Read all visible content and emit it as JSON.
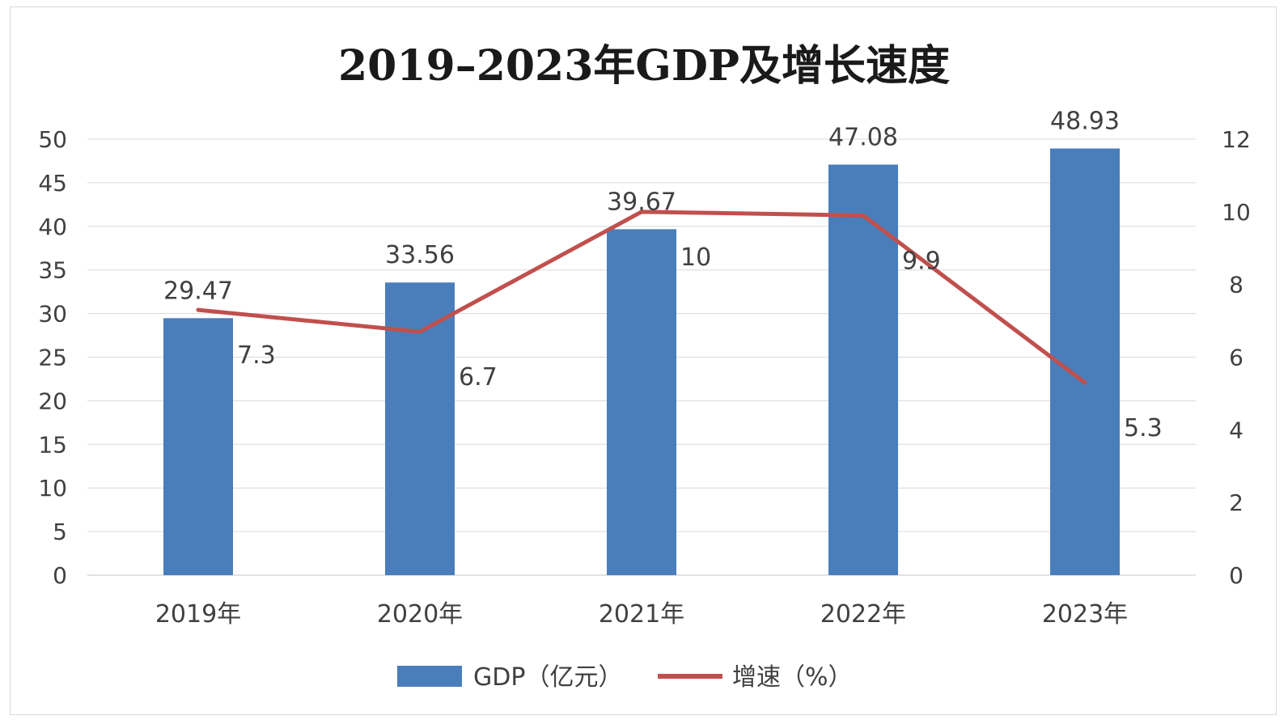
{
  "chart_data": {
    "type": "bar",
    "title": "2019–2023年GDP及增长速度",
    "categories": [
      "2019年",
      "2020年",
      "2021年",
      "2022年",
      "2023年"
    ],
    "series": [
      {
        "name": "GDP（亿元）",
        "type": "bar",
        "axis": "left",
        "values": [
          29.47,
          33.56,
          39.67,
          47.08,
          48.93
        ],
        "labels": [
          "29.47",
          "33.56",
          "39.67",
          "47.08",
          "48.93"
        ]
      },
      {
        "name": "增速（%）",
        "type": "line",
        "axis": "right",
        "values": [
          7.3,
          6.7,
          10,
          9.9,
          5.3
        ],
        "labels": [
          "7.3",
          "6.7",
          "10",
          "9.9",
          "5.3"
        ]
      }
    ],
    "ylim_left": [
      0,
      50
    ],
    "yticks_left": [
      "0",
      "5",
      "10",
      "15",
      "20",
      "25",
      "30",
      "35",
      "40",
      "45",
      "50"
    ],
    "ylim_right": [
      0,
      12
    ],
    "yticks_right": [
      "0",
      "2",
      "4",
      "6",
      "8",
      "10",
      "12"
    ],
    "grid": true,
    "legend_position": "bottom",
    "colors": {
      "bar": "#4a7ebb",
      "line": "#c0504d",
      "grid": "#d9d9d9",
      "text": "#404040",
      "title": "#1a1a1a"
    }
  }
}
